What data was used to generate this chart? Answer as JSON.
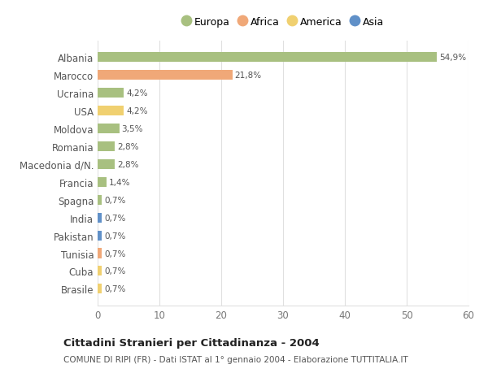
{
  "categories": [
    "Albania",
    "Marocco",
    "Ucraina",
    "USA",
    "Moldova",
    "Romania",
    "Macedonia d/N.",
    "Francia",
    "Spagna",
    "India",
    "Pakistan",
    "Tunisia",
    "Cuba",
    "Brasile"
  ],
  "values": [
    54.9,
    21.8,
    4.2,
    4.2,
    3.5,
    2.8,
    2.8,
    1.4,
    0.7,
    0.7,
    0.7,
    0.7,
    0.7,
    0.7
  ],
  "labels": [
    "54,9%",
    "21,8%",
    "4,2%",
    "4,2%",
    "3,5%",
    "2,8%",
    "2,8%",
    "1,4%",
    "0,7%",
    "0,7%",
    "0,7%",
    "0,7%",
    "0,7%",
    "0,7%"
  ],
  "colors": [
    "#a8c080",
    "#f0a878",
    "#a8c080",
    "#f0d070",
    "#a8c080",
    "#a8c080",
    "#a8c080",
    "#a8c080",
    "#a8c080",
    "#6090c8",
    "#6090c8",
    "#f0a878",
    "#f0d070",
    "#f0d070"
  ],
  "legend": [
    {
      "label": "Europa",
      "color": "#a8c080"
    },
    {
      "label": "Africa",
      "color": "#f0a878"
    },
    {
      "label": "America",
      "color": "#f0d070"
    },
    {
      "label": "Asia",
      "color": "#6090c8"
    }
  ],
  "title": "Cittadini Stranieri per Cittadinanza - 2004",
  "subtitle": "COMUNE DI RIPI (FR) - Dati ISTAT al 1° gennaio 2004 - Elaborazione TUTTITALIA.IT",
  "xlim": [
    0,
    60
  ],
  "xticks": [
    0,
    10,
    20,
    30,
    40,
    50,
    60
  ],
  "bg_color": "#ffffff",
  "plot_bg_color": "#ffffff",
  "grid_color": "#e0e0e0"
}
